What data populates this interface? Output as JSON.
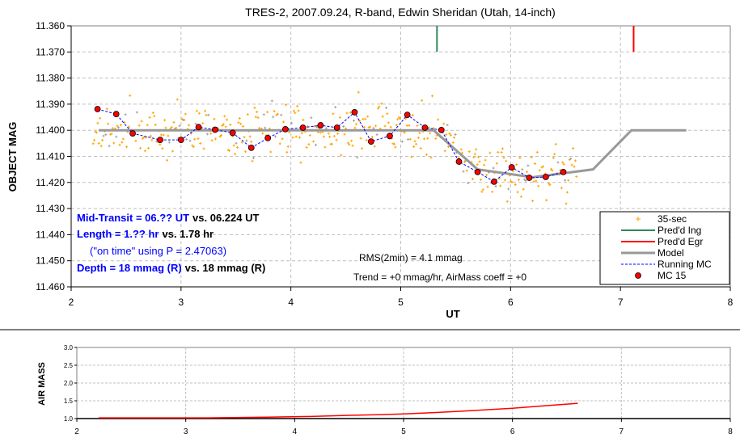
{
  "chart_data": [
    {
      "type": "scatter",
      "title": "TRES-2, 2007.09.24, R-band, Edwin Sheridan (Utah, 14-inch)",
      "xlabel": "UT",
      "ylabel": "OBJECT MAG",
      "xlim": [
        2,
        8
      ],
      "ylim": [
        11.36,
        11.46
      ],
      "y_inverted": true,
      "xticks": [
        "2",
        "3",
        "4",
        "5",
        "6",
        "7",
        "8"
      ],
      "yticks": [
        "11.360",
        "11.370",
        "11.380",
        "11.390",
        "11.400",
        "11.410",
        "11.420",
        "11.430",
        "11.440",
        "11.450",
        "11.460"
      ],
      "grid": true,
      "legend_position": "bottom-right",
      "legend": [
        "35-sec",
        "Pred'd Ing",
        "Pred'd Egr",
        "Model",
        "Running MC",
        "MC 15"
      ],
      "pred_ingress_ut": 5.33,
      "pred_egress_ut": 7.12,
      "model": {
        "x": [
          2.25,
          5.3,
          5.7,
          6.2,
          6.75,
          7.1,
          7.6
        ],
        "y": [
          11.4,
          11.4,
          11.415,
          11.418,
          11.415,
          11.4,
          11.4
        ]
      },
      "mc15": {
        "x": [
          2.24,
          2.41,
          2.56,
          2.81,
          3.0,
          3.16,
          3.31,
          3.47,
          3.64,
          3.79,
          3.95,
          4.11,
          4.27,
          4.42,
          4.58,
          4.73,
          4.9,
          5.06,
          5.22,
          5.37,
          5.53,
          5.7,
          5.85,
          6.01,
          6.17,
          6.32,
          6.48
        ],
        "y": [
          11.3919,
          11.3938,
          11.4012,
          11.4037,
          11.4037,
          11.3988,
          11.3998,
          11.401,
          11.4067,
          11.403,
          11.3996,
          11.399,
          11.3981,
          11.399,
          11.3931,
          11.4043,
          11.4022,
          11.3941,
          11.399,
          11.3999,
          11.412,
          11.416,
          11.4197,
          11.4142,
          11.4182,
          11.4179,
          11.416
        ]
      },
      "raw_35sec": {
        "x_start": 2.2,
        "x_end": 6.6,
        "count": 420,
        "scatter_sigma_mag": 0.0085
      },
      "annotations": {
        "mid_transit": "Mid-Transit = 06.?? UT",
        "mid_transit_vs": "vs. 06.224 UT",
        "length": "Length = 1.?? hr",
        "length_vs": "vs. 1.78 hr",
        "on_time": "(\"on time\" using P = 2.47063)",
        "depth": "Depth = 18 mmag (R)",
        "depth_vs": "vs. 18 mmag  (R)",
        "rms": "RMS(2min) = 4.1 mmag",
        "trend": "Trend = +0 mmag/hr, AirMass coeff = +0"
      },
      "colors": {
        "raw": "#ffa500",
        "ing": "#2e8b57",
        "egr": "#ff0000",
        "model": "#999999",
        "running": "#0000ff",
        "mc": "#ff0000",
        "annot": "#0000ff"
      }
    },
    {
      "type": "line",
      "ylabel": "AIR MASS",
      "xlim": [
        2,
        8
      ],
      "ylim": [
        1.0,
        3.0
      ],
      "xticks": [
        "2",
        "3",
        "4",
        "5",
        "6",
        "7",
        "8"
      ],
      "yticks": [
        "1.0",
        "1.5",
        "2.0",
        "2.5",
        "3.0"
      ],
      "x": [
        2.2,
        3.2,
        3.75,
        4.15,
        4.5,
        4.8,
        5.0,
        5.3,
        5.6,
        6.0,
        6.3,
        6.6
      ],
      "y": [
        1.02,
        1.02,
        1.04,
        1.06,
        1.09,
        1.11,
        1.13,
        1.17,
        1.22,
        1.29,
        1.36,
        1.43
      ],
      "color": "#ff0000"
    }
  ]
}
